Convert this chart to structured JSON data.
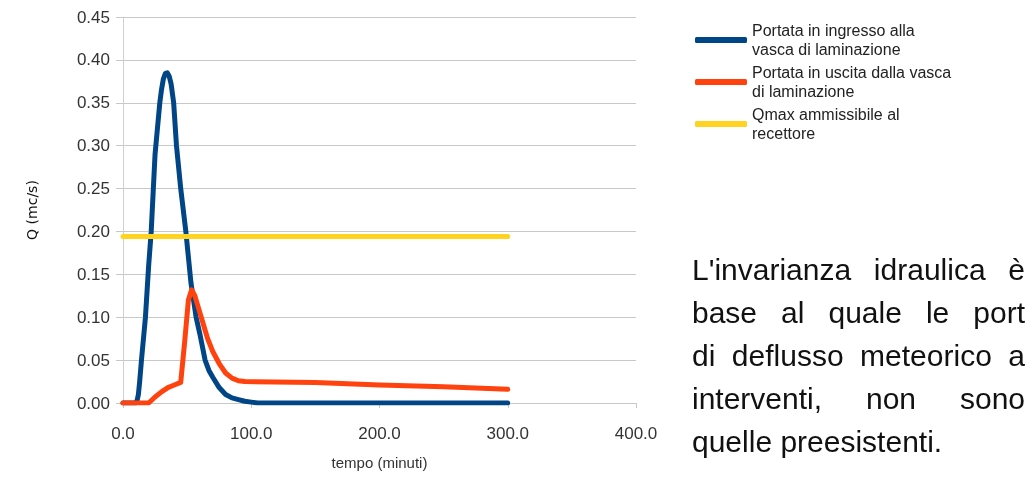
{
  "chart_data": {
    "type": "line",
    "xlabel": "tempo (minuti)",
    "ylabel": "Q (mc/s)",
    "series": [
      {
        "name": "Portata in ingresso alla vasca di laminazione",
        "color": "#004586",
        "x": [
          0,
          5,
          10,
          11,
          12,
          13,
          14.4,
          17.5,
          20,
          22,
          25,
          28.7,
          30,
          31.5,
          33,
          34.5,
          36,
          37.5,
          39.5,
          41.7,
          45,
          49,
          53,
          57,
          60,
          64,
          67,
          70,
          75,
          80,
          85,
          90,
          95,
          100,
          105,
          150,
          200,
          250,
          300
        ],
        "values": [
          0,
          0,
          0,
          0.003,
          0.01,
          0.025,
          0.05,
          0.1,
          0.16,
          0.2,
          0.29,
          0.35,
          0.365,
          0.378,
          0.384,
          0.385,
          0.381,
          0.372,
          0.35,
          0.3,
          0.25,
          0.2,
          0.14,
          0.1,
          0.08,
          0.05,
          0.038,
          0.03,
          0.018,
          0.01,
          0.006,
          0.004,
          0.002,
          0.001,
          0,
          0,
          0,
          0,
          0
        ]
      },
      {
        "name": "Portata in uscita dalla vasca di laminazione",
        "color": "#ff420e",
        "x": [
          0,
          10,
          20,
          25,
          30,
          35,
          40,
          45,
          48,
          51,
          53.5,
          56,
          59,
          62,
          66,
          70,
          75,
          80,
          85,
          90,
          95,
          150,
          200,
          250,
          300
        ],
        "values": [
          0,
          0,
          0,
          0.007,
          0.013,
          0.018,
          0.021,
          0.024,
          0.07,
          0.12,
          0.132,
          0.125,
          0.11,
          0.095,
          0.075,
          0.06,
          0.046,
          0.035,
          0.029,
          0.026,
          0.025,
          0.024,
          0.021,
          0.019,
          0.016
        ]
      },
      {
        "name": "Qmax ammissibile al recettore",
        "color": "#ffd320",
        "x": [
          0,
          300
        ],
        "values": [
          0.194,
          0.194
        ]
      }
    ],
    "xlim": [
      0,
      400
    ],
    "xticks": [
      {
        "value": 0,
        "label": "0.0"
      },
      {
        "value": 100,
        "label": "100.0"
      },
      {
        "value": 200,
        "label": "200.0"
      },
      {
        "value": 300,
        "label": "300.0"
      },
      {
        "value": 400,
        "label": "400.0"
      }
    ],
    "ylim": [
      0,
      0.45
    ],
    "yticks": [
      {
        "value": 0,
        "label": "0.00"
      },
      {
        "value": 0.05,
        "label": "0.05"
      },
      {
        "value": 0.1,
        "label": "0.10"
      },
      {
        "value": 0.15,
        "label": "0.15"
      },
      {
        "value": 0.2,
        "label": "0.20"
      },
      {
        "value": 0.25,
        "label": "0.25"
      },
      {
        "value": 0.3,
        "label": "0.30"
      },
      {
        "value": 0.35,
        "label": "0.35"
      },
      {
        "value": 0.4,
        "label": "0.40"
      },
      {
        "value": 0.45,
        "label": "0.45"
      }
    ],
    "grid": "y",
    "legend": "top right",
    "marker": "none",
    "line_style": "solid",
    "annotations": [
      "L'invarianza idraulica è",
      "base al quale le port",
      "di deflusso meteorico a",
      "interventi, non sono",
      "quelle preesistenti."
    ]
  }
}
